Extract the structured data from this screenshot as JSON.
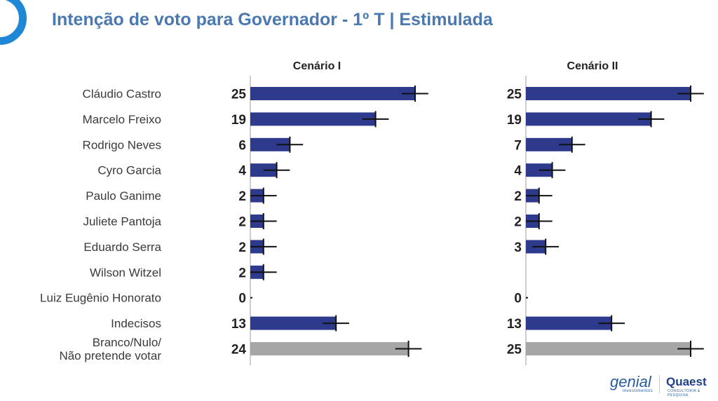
{
  "title": "Intenção de voto para Governador - 1º T | Estimulada",
  "colors": {
    "bar": "#2e3a8c",
    "bar_other": "#a6a6a6",
    "title": "#4a78b0",
    "error": "#111111",
    "accent": "#1e88d6"
  },
  "logos": {
    "genial": "genial",
    "genial_sub": "investimentos",
    "quaest": "Quaest",
    "quaest_sub": "CONSULTORIA & PESQUISA"
  },
  "chart_data": {
    "type": "bar",
    "orientation": "horizontal",
    "title": "Intenção de voto para Governador - 1º T | Estimulada",
    "categories": [
      "Cláudio Castro",
      "Marcelo Freixo",
      "Rodrigo Neves",
      "Cyro Garcia",
      "Paulo Ganime",
      "Juliete Pantoja",
      "Eduardo Serra",
      "Wilson Witzel",
      "Luiz Eugênio Honorato",
      "Indecisos",
      [
        "Branco/Nulo/",
        "Não pretende votar"
      ]
    ],
    "series": [
      {
        "name": "Cenário I",
        "values": [
          25,
          19,
          6,
          4,
          2,
          2,
          2,
          2,
          0,
          13,
          24
        ]
      },
      {
        "name": "Cenário II",
        "values": [
          25,
          19,
          7,
          4,
          2,
          2,
          3,
          null,
          0,
          13,
          25
        ]
      }
    ],
    "error_margin": 2,
    "grid": false,
    "legend": "none"
  }
}
